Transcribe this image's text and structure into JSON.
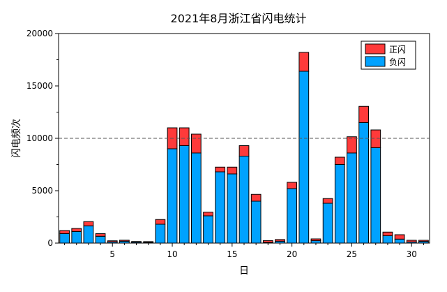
{
  "chart_data": {
    "type": "bar",
    "stacked": true,
    "title": "2021年8月浙江省闪电统计",
    "xlabel": "日",
    "ylabel": "闪电频次",
    "ylim": [
      0,
      20000
    ],
    "xlim": [
      0.5,
      31.5
    ],
    "yticks": [
      "0",
      "5000",
      "10000",
      "15000",
      "20000"
    ],
    "xticks": [
      "5",
      "10",
      "15",
      "20",
      "25",
      "30"
    ],
    "reference_line": 10000,
    "categories": [
      1,
      2,
      3,
      4,
      5,
      6,
      7,
      8,
      9,
      10,
      11,
      12,
      13,
      14,
      15,
      16,
      17,
      18,
      19,
      20,
      21,
      22,
      23,
      24,
      25,
      26,
      27,
      28,
      29,
      30,
      31
    ],
    "series": [
      {
        "name": "负闪",
        "color": "#00a2ff",
        "values": [
          900,
          1100,
          1650,
          650,
          120,
          180,
          90,
          70,
          1800,
          9000,
          9300,
          8600,
          2600,
          6800,
          6600,
          8300,
          4000,
          70,
          180,
          5200,
          16400,
          230,
          3800,
          7500,
          8600,
          11500,
          9100,
          700,
          380,
          110,
          160
        ]
      },
      {
        "name": "正闪",
        "color": "#ff3a3a",
        "values": [
          300,
          300,
          400,
          250,
          100,
          100,
          60,
          70,
          450,
          2000,
          1700,
          1800,
          350,
          450,
          650,
          1000,
          650,
          170,
          160,
          600,
          1800,
          170,
          450,
          700,
          1550,
          1550,
          1700,
          350,
          420,
          160,
          110
        ]
      }
    ],
    "legend": {
      "placement": "top-right",
      "items": [
        "正闪",
        "负闪"
      ]
    }
  }
}
